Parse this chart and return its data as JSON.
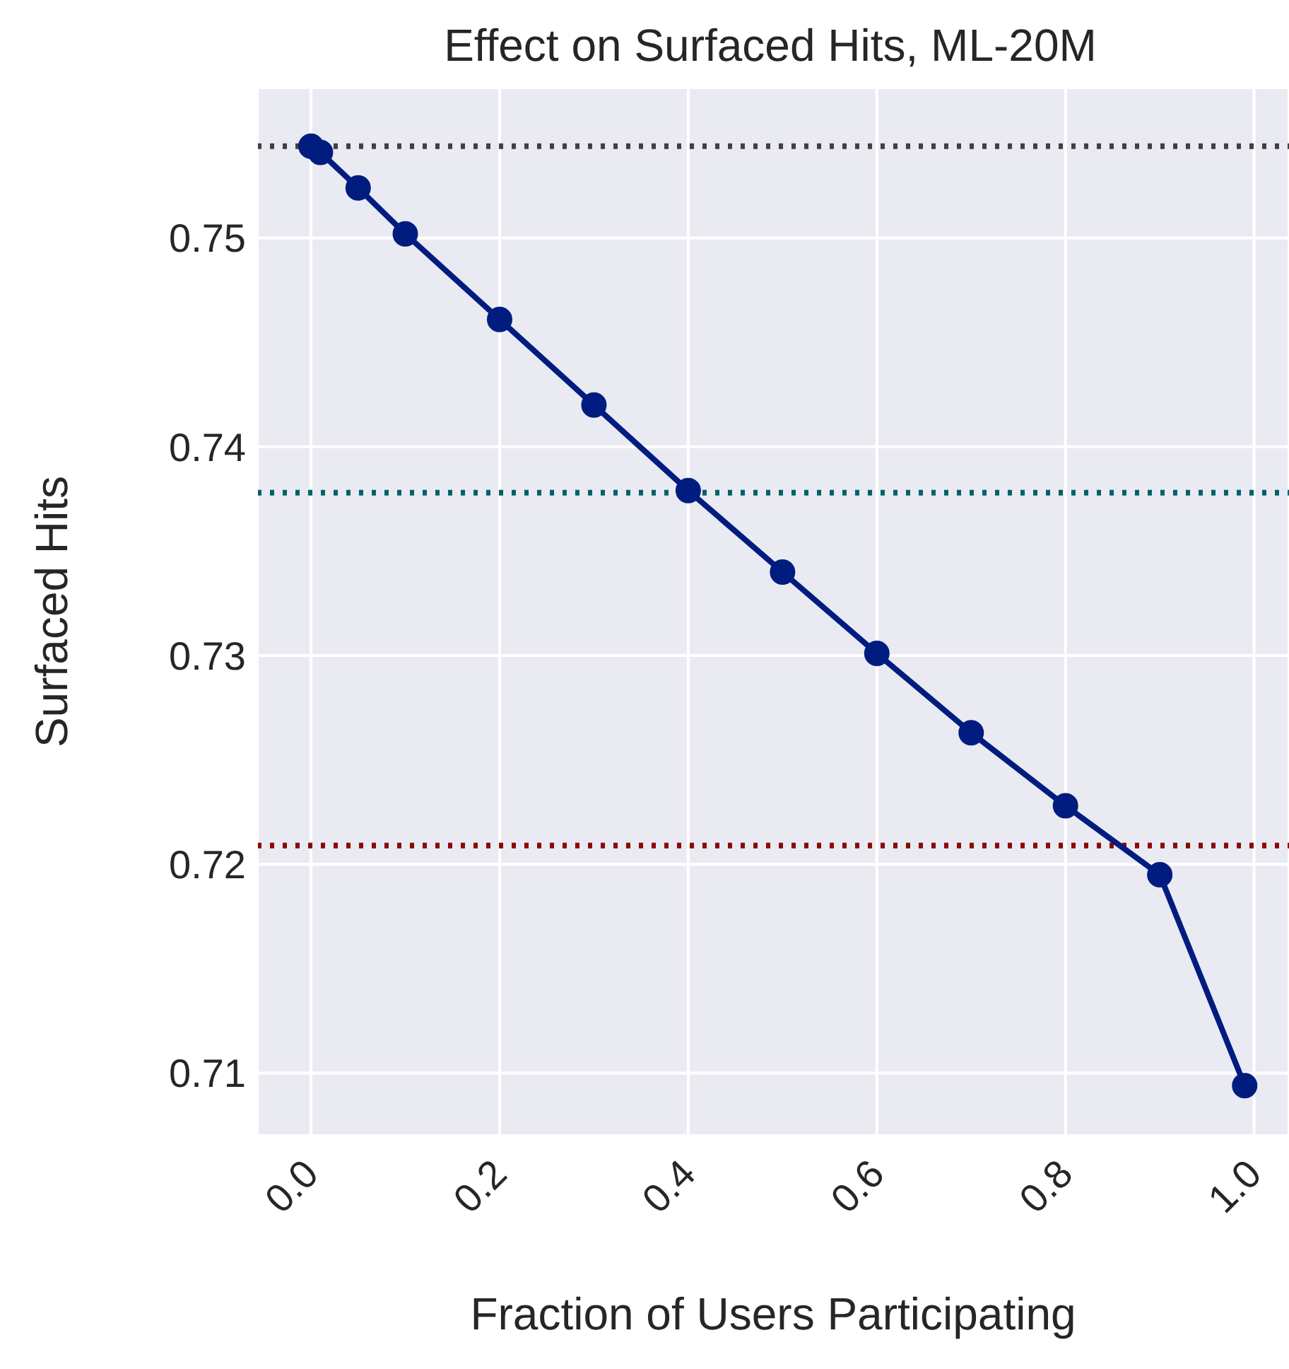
{
  "chart_data": {
    "type": "line",
    "title": "Effect on Surfaced Hits, ML-20M",
    "xlabel": "Fraction of Users Participating",
    "ylabel": "Surfaced Hits",
    "x": [
      0,
      0.01,
      0.05,
      0.1,
      0.2,
      0.3,
      0.4,
      0.5,
      0.6,
      0.7,
      0.8,
      0.9,
      0.99
    ],
    "series": [
      {
        "color": "#001c7f",
        "values": [
          0.7544,
          0.7541,
          0.7524,
          0.7502,
          0.7461,
          0.742,
          0.7379,
          0.734,
          0.7301,
          0.7263,
          0.7228,
          0.7195,
          0.7094
        ]
      }
    ],
    "xlim": [
      -0.057,
      1.037
    ],
    "ylim": [
      0.707,
      0.7572
    ],
    "xticks": [
      {
        "value": 0,
        "label": "0.0"
      },
      {
        "value": 0.2,
        "label": "0.2"
      },
      {
        "value": 0.4,
        "label": "0.4"
      },
      {
        "value": 0.6,
        "label": "0.6"
      },
      {
        "value": 0.8,
        "label": "0.8"
      },
      {
        "value": 1,
        "label": "1.0"
      }
    ],
    "yticks": [
      0.71,
      0.72,
      0.73,
      0.74,
      0.75
    ],
    "ref_lines": [
      {
        "axis": "y",
        "value": 0.7544,
        "color": "#404040",
        "line_style": "dotted"
      },
      {
        "axis": "y",
        "value": 0.7378,
        "color": "#006266",
        "line_style": "dotted"
      },
      {
        "axis": "y",
        "value": 0.7209,
        "color": "#8c0800",
        "line_style": "dotted"
      }
    ],
    "grid": true,
    "marker": "circle",
    "line_style": "solid"
  }
}
